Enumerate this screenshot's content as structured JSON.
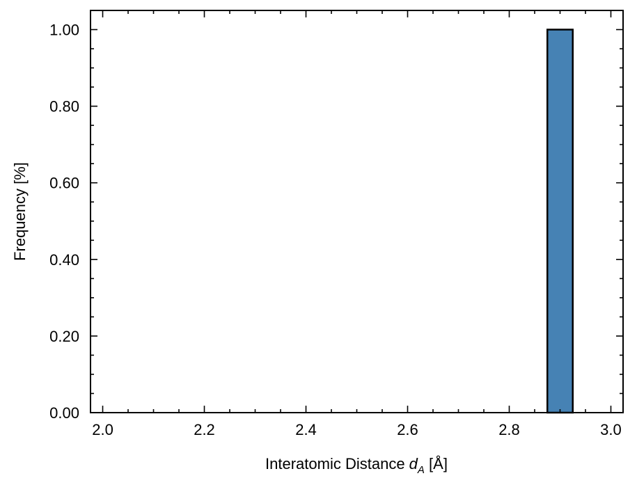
{
  "chart_data": {
    "type": "bar",
    "title": "",
    "xlabel_main": "Interatomic Distance ",
    "xlabel_symbol": "d",
    "xlabel_subscript": "A",
    "xlabel_unit": " [Å]",
    "ylabel": "Frequency [%]",
    "xlim": [
      1.976,
      3.024
    ],
    "ylim": [
      0,
      1.05
    ],
    "x_ticks": [
      2.0,
      2.2,
      2.4,
      2.6,
      2.8,
      3.0
    ],
    "x_tick_labels": [
      "2.0",
      "2.2",
      "2.4",
      "2.6",
      "2.8",
      "3.0"
    ],
    "y_ticks": [
      0.0,
      0.2,
      0.4,
      0.6,
      0.8,
      1.0
    ],
    "y_tick_labels": [
      "0.00",
      "0.20",
      "0.40",
      "0.60",
      "0.80",
      "1.00"
    ],
    "x_minor_step": 0.05,
    "y_minor_step": 0.05,
    "bins": [
      {
        "start": 2.025,
        "end": 2.075,
        "value": 0
      },
      {
        "start": 2.075,
        "end": 2.125,
        "value": 0
      },
      {
        "start": 2.125,
        "end": 2.175,
        "value": 0
      },
      {
        "start": 2.175,
        "end": 2.225,
        "value": 0
      },
      {
        "start": 2.225,
        "end": 2.275,
        "value": 0
      },
      {
        "start": 2.275,
        "end": 2.325,
        "value": 0
      },
      {
        "start": 2.325,
        "end": 2.375,
        "value": 0
      },
      {
        "start": 2.375,
        "end": 2.425,
        "value": 0
      },
      {
        "start": 2.425,
        "end": 2.475,
        "value": 0
      },
      {
        "start": 2.475,
        "end": 2.525,
        "value": 0
      },
      {
        "start": 2.525,
        "end": 2.575,
        "value": 0
      },
      {
        "start": 2.575,
        "end": 2.625,
        "value": 0
      },
      {
        "start": 2.625,
        "end": 2.675,
        "value": 0
      },
      {
        "start": 2.675,
        "end": 2.725,
        "value": 0
      },
      {
        "start": 2.725,
        "end": 2.775,
        "value": 0
      },
      {
        "start": 2.775,
        "end": 2.825,
        "value": 0
      },
      {
        "start": 2.825,
        "end": 2.875,
        "value": 0
      },
      {
        "start": 2.875,
        "end": 2.925,
        "value": 1.0
      },
      {
        "start": 2.925,
        "end": 2.975,
        "value": 0
      }
    ],
    "bar_color": "#4682b4",
    "edge_color": "#000000",
    "grid": false,
    "legend": "none"
  }
}
